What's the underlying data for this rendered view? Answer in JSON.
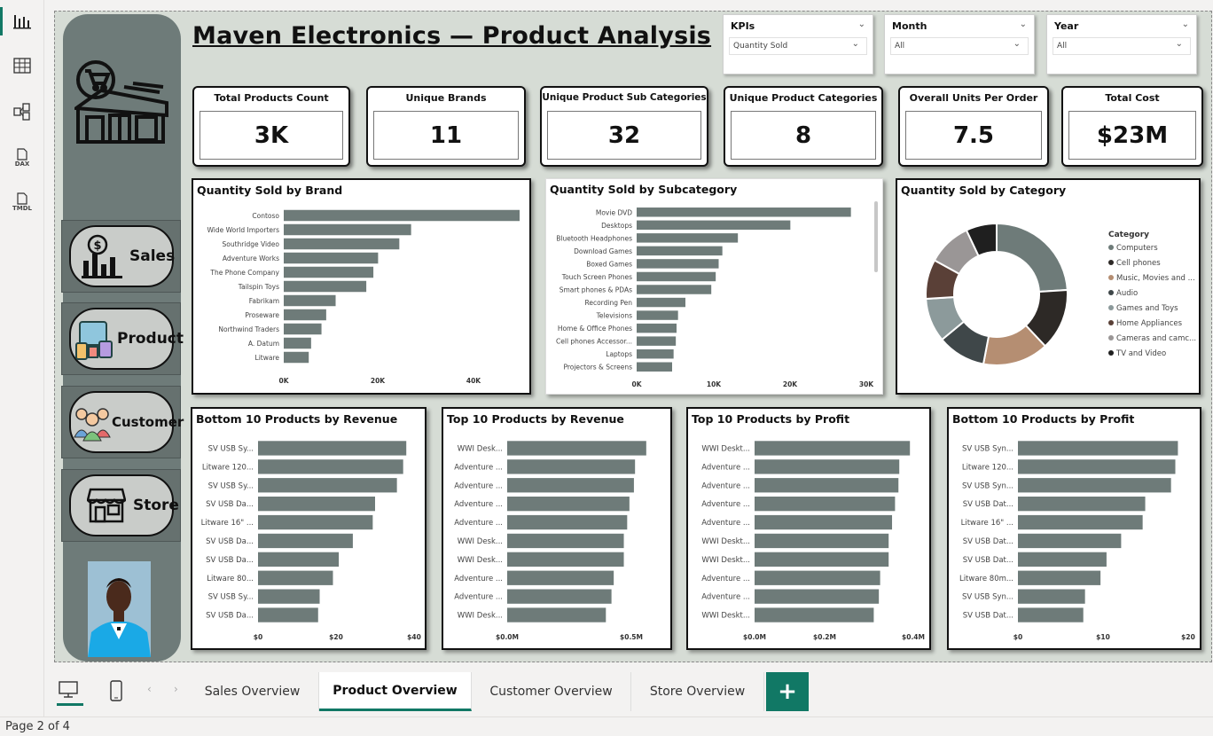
{
  "title": "Maven Electronics — Product Analysis",
  "rail": [
    {
      "icon": "report-view-icon",
      "active": true
    },
    {
      "icon": "table-view-icon",
      "active": false
    },
    {
      "icon": "model-view-icon",
      "active": false
    },
    {
      "icon": "dax-query-icon",
      "label": "DAX"
    },
    {
      "icon": "tmdl-view-icon",
      "label": "TMDL"
    }
  ],
  "slicers": [
    {
      "title": "KPIs",
      "value": "Quantity Sold"
    },
    {
      "title": "Month",
      "value": "All"
    },
    {
      "title": "Year",
      "value": "All"
    }
  ],
  "kpis": [
    {
      "title": "Total Products Count",
      "value": "3K"
    },
    {
      "title": "Unique Brands",
      "value": "11"
    },
    {
      "title": "Unique Product Sub Categories",
      "value": "32"
    },
    {
      "title": "Unique Product Categories",
      "value": "8"
    },
    {
      "title": "Overall Units Per Order",
      "value": "7.5"
    },
    {
      "title": "Total Cost",
      "value": "$23M"
    }
  ],
  "nav": [
    {
      "label": "Sales",
      "icon": "sales-chart-icon"
    },
    {
      "label": "Product",
      "icon": "product-devices-icon"
    },
    {
      "label": "Customer",
      "icon": "customers-icon"
    },
    {
      "label": "Store",
      "icon": "store-icon"
    }
  ],
  "colors": {
    "bar": "#6e7b79",
    "accent": "#117865",
    "canvas": "#d6dcd5",
    "nav": "#6e7b79"
  },
  "chart_data": [
    {
      "type": "bar",
      "orientation": "horizontal",
      "title": "Quantity Sold by Brand",
      "categories": [
        "Contoso",
        "Wide World Importers",
        "Southridge Video",
        "Adventure Works",
        "The Phone Company",
        "Tailspin Toys",
        "Fabrikam",
        "Proseware",
        "Northwind Traders",
        "A. Datum",
        "Litware"
      ],
      "values": [
        50000,
        27000,
        24500,
        20000,
        19000,
        17500,
        11000,
        9000,
        8000,
        5800,
        5300
      ],
      "xticks": [
        "0K",
        "20K",
        "40K"
      ],
      "xlim": [
        0,
        50000
      ]
    },
    {
      "type": "bar",
      "orientation": "horizontal",
      "title": "Quantity Sold by Subcategory",
      "categories": [
        "Movie DVD",
        "Desktops",
        "Bluetooth Headphones",
        "Download Games",
        "Boxed Games",
        "Touch Screen Phones",
        "Smart phones & PDAs",
        "Recording Pen",
        "Televisions",
        "Home & Office Phones",
        "Cell phones Accessor...",
        "Laptops",
        "Projectors & Screens"
      ],
      "values": [
        29000,
        20800,
        13700,
        11600,
        11100,
        10700,
        10100,
        6600,
        5600,
        5400,
        5300,
        5000,
        4800
      ],
      "xticks": [
        "0K",
        "10K",
        "20K",
        "30K"
      ],
      "xlim": [
        0,
        30000
      ]
    },
    {
      "type": "pie",
      "title": "Quantity Sold by Category",
      "legend_title": "Category",
      "categories": [
        "Computers",
        "Cell phones",
        "Music, Movies and ...",
        "Audio",
        "Games and Toys",
        "Home Appliances",
        "Cameras and camc...",
        "TV and Video"
      ],
      "values": [
        24,
        14,
        15,
        11,
        10,
        9,
        10,
        7
      ],
      "colors": [
        "#6e7b79",
        "#2d2926",
        "#b58e72",
        "#3f4749",
        "#8c9a9b",
        "#5a4037",
        "#9a9696",
        "#1f1f1f"
      ],
      "legend": "right"
    },
    {
      "type": "bar",
      "orientation": "horizontal",
      "title": "Bottom 10 Products by Revenue",
      "categories": [
        "SV USB Sy...",
        "Litware 120...",
        "SV USB Sy...",
        "SV USB Da...",
        "Litware 16\" ...",
        "SV USB Da...",
        "SV USB Da...",
        "Litware 80...",
        "SV USB Sy...",
        "SV USB Da..."
      ],
      "values": [
        38,
        37.2,
        35.6,
        30,
        29.4,
        24.3,
        20.7,
        19.2,
        15.8,
        15.4
      ],
      "xticks": [
        "$0",
        "$20",
        "$40"
      ],
      "xlim": [
        0,
        40
      ]
    },
    {
      "type": "bar",
      "orientation": "horizontal",
      "title": "Top 10 Products by Revenue",
      "categories": [
        "WWI Desk...",
        "Adventure ...",
        "Adventure ...",
        "Adventure ...",
        "Adventure ...",
        "WWI Desk...",
        "WWI Desk...",
        "Adventure ...",
        "Adventure ...",
        "WWI Desk..."
      ],
      "values": [
        0.62,
        0.57,
        0.565,
        0.545,
        0.535,
        0.52,
        0.52,
        0.475,
        0.465,
        0.44
      ],
      "xticks": [
        "$0.0M",
        "$0.5M"
      ],
      "xlim": [
        0,
        0.68
      ]
    },
    {
      "type": "bar",
      "orientation": "horizontal",
      "title": "Top 10 Products by Profit",
      "categories": [
        "WWI Deskt...",
        "Adventure ...",
        "Adventure ...",
        "Adventure ...",
        "Adventure ...",
        "WWI Deskt...",
        "WWI Deskt...",
        "Adventure ...",
        "Adventure ...",
        "WWI Deskt..."
      ],
      "values": [
        0.365,
        0.34,
        0.338,
        0.33,
        0.323,
        0.315,
        0.315,
        0.295,
        0.292,
        0.28
      ],
      "xticks": [
        "$0.0M",
        "$0.2M",
        "$0.4M"
      ],
      "xlim": [
        0,
        0.4
      ]
    },
    {
      "type": "bar",
      "orientation": "horizontal",
      "title": "Bottom 10 Products by Profit",
      "categories": [
        "SV USB Syn...",
        "Litware 120...",
        "SV USB Syn...",
        "SV USB Dat...",
        "Litware 16\" ...",
        "SV USB Dat...",
        "SV USB Dat...",
        "Litware 80m...",
        "SV USB Syn...",
        "SV USB Dat..."
      ],
      "values": [
        18.6,
        18.3,
        17.8,
        14.8,
        14.5,
        12,
        10.3,
        9.6,
        7.8,
        7.6
      ],
      "xticks": [
        "$0",
        "$10",
        "$20"
      ],
      "xlim": [
        0,
        20
      ]
    }
  ],
  "tabs": [
    {
      "label": "Sales Overview",
      "active": false
    },
    {
      "label": "Product Overview",
      "active": true
    },
    {
      "label": "Customer Overview",
      "active": false
    },
    {
      "label": "Store Overview",
      "active": false
    }
  ],
  "add_tab_label": "+",
  "status": "Page 2 of 4"
}
